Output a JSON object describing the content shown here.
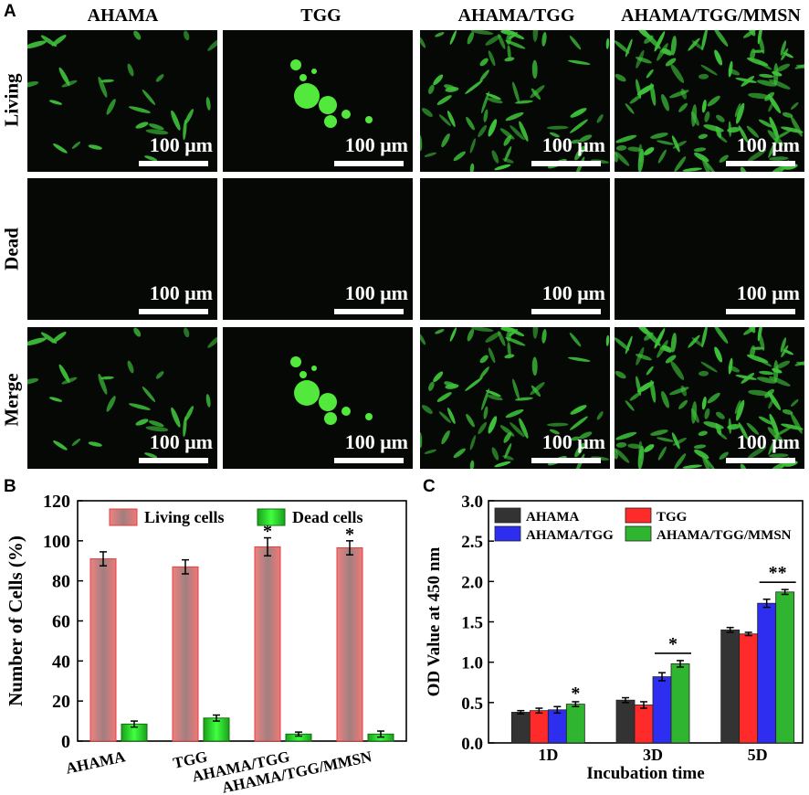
{
  "panel_a": {
    "letter": "A",
    "columns": [
      "AHAMA",
      "TGG",
      "AHAMA/TGG",
      "AHAMA/TGG/MMSN"
    ],
    "rows": [
      "Living",
      "Dead",
      "Merge"
    ],
    "scale_label": "100 μm",
    "colors": {
      "cell": "#3ec23a",
      "cluster": "#52e83c",
      "background": "#050805"
    }
  },
  "panel_b": {
    "letter": "B",
    "chart_data": {
      "type": "bar",
      "categories": [
        "AHAMA",
        "TGG",
        "AHAMA/TGG",
        "AHAMA/TGG/MMSN"
      ],
      "series": [
        {
          "name": "Living cells",
          "values": [
            91,
            87,
            97,
            96.5
          ],
          "errors": [
            3.5,
            3.5,
            4.5,
            3.5
          ],
          "color": "#e07070"
        },
        {
          "name": "Dead cells",
          "values": [
            8.5,
            11.5,
            3.5,
            3.5
          ],
          "errors": [
            1.5,
            1.5,
            1,
            1.5
          ],
          "color": "#22b822"
        }
      ],
      "annotations": [
        {
          "category": "AHAMA/TGG",
          "text": "*"
        },
        {
          "category": "AHAMA/TGG/MMSN",
          "text": "*"
        }
      ],
      "ylabel": "Number of Cells (%)",
      "xlabel": "",
      "ylim": [
        0,
        120
      ],
      "yticks": [
        0,
        20,
        40,
        60,
        80,
        100,
        120
      ],
      "legend_position": "top"
    }
  },
  "panel_c": {
    "letter": "C",
    "chart_data": {
      "type": "bar",
      "categories": [
        "1D",
        "3D",
        "5D"
      ],
      "series": [
        {
          "name": "AHAMA",
          "values": [
            0.38,
            0.53,
            1.4
          ],
          "errors": [
            0.02,
            0.03,
            0.03
          ],
          "color": "#333333"
        },
        {
          "name": "TGG",
          "values": [
            0.4,
            0.47,
            1.35
          ],
          "errors": [
            0.03,
            0.04,
            0.02
          ],
          "color": "#ff2a2a"
        },
        {
          "name": "AHAMA/TGG",
          "values": [
            0.41,
            0.82,
            1.73
          ],
          "errors": [
            0.04,
            0.05,
            0.05
          ],
          "color": "#2e2ef0"
        },
        {
          "name": "AHAMA/TGG/MMSN",
          "values": [
            0.48,
            0.98,
            1.87
          ],
          "errors": [
            0.03,
            0.04,
            0.03
          ],
          "color": "#2fb52f"
        }
      ],
      "annotations": [
        {
          "category": "1D",
          "text": "*"
        },
        {
          "category": "3D",
          "text": "*"
        },
        {
          "category": "5D",
          "text": "**"
        }
      ],
      "xlabel": "Incubation time",
      "ylabel": "OD Value at 450 nm",
      "ylim": [
        0,
        3.0
      ],
      "yticks": [
        "0.0",
        "0.5",
        "1.0",
        "1.5",
        "2.0",
        "2.5",
        "3.0"
      ],
      "legend_position": "top"
    }
  }
}
